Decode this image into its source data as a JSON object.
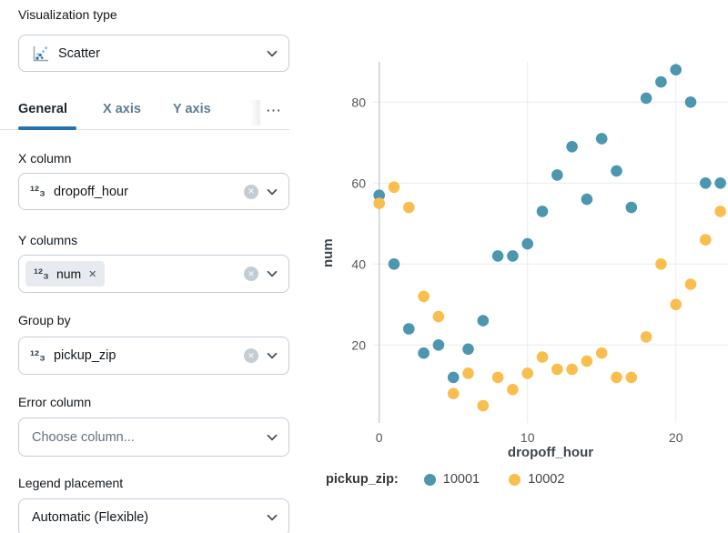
{
  "colors": {
    "accent_blue": "#2272B4",
    "series_blue": "#4D96AF",
    "series_yellow": "#F9BE4D",
    "tab_inactive": "#5E7D92",
    "text_dark": "#11171C"
  },
  "icons": {
    "numeric_type": "¹²₃",
    "clear": "✕",
    "remove": "✕",
    "more_tabs": "⋯"
  },
  "panel": {
    "visualization_type_label": "Visualization type",
    "visualization_type_value": "Scatter",
    "tabs": [
      {
        "label": "General",
        "active": true
      },
      {
        "label": "X axis",
        "active": false
      },
      {
        "label": "Y axis",
        "active": false
      }
    ],
    "x_column": {
      "label": "X column",
      "value": "dropoff_hour"
    },
    "y_columns": {
      "label": "Y columns",
      "chip_value": "num"
    },
    "group_by": {
      "label": "Group by",
      "value": "pickup_zip"
    },
    "error_column": {
      "label": "Error column",
      "placeholder": "Choose column..."
    },
    "legend_placement": {
      "label": "Legend placement",
      "value": "Automatic (Flexible)"
    }
  },
  "chart_data": {
    "type": "scatter",
    "xlabel": "dropoff_hour",
    "ylabel": "num",
    "x_ticks": [
      "0",
      "10",
      "20"
    ],
    "y_ticks": [
      "20",
      "40",
      "60",
      "80"
    ],
    "xlim": [
      -0.7,
      23.6
    ],
    "ylim": [
      0,
      90
    ],
    "grid": true,
    "legend_title": "pickup_zip:",
    "legend_position": "bottom",
    "series": [
      {
        "name": "10001",
        "color": "#4D96AF",
        "points": [
          [
            0,
            57
          ],
          [
            1,
            40
          ],
          [
            2,
            24
          ],
          [
            3,
            18
          ],
          [
            4,
            20
          ],
          [
            5,
            12
          ],
          [
            6,
            19
          ],
          [
            7,
            26
          ],
          [
            8,
            42
          ],
          [
            9,
            42
          ],
          [
            10,
            45
          ],
          [
            11,
            53
          ],
          [
            12,
            62
          ],
          [
            13,
            69
          ],
          [
            14,
            56
          ],
          [
            15,
            71
          ],
          [
            16,
            63
          ],
          [
            17,
            54
          ],
          [
            18,
            81
          ],
          [
            19,
            85
          ],
          [
            20,
            88
          ],
          [
            21,
            80
          ],
          [
            22,
            60
          ],
          [
            23,
            60
          ]
        ]
      },
      {
        "name": "10002",
        "color": "#F9BE4D",
        "points": [
          [
            0,
            55
          ],
          [
            1,
            59
          ],
          [
            2,
            54
          ],
          [
            3,
            32
          ],
          [
            4,
            27
          ],
          [
            5,
            8
          ],
          [
            6,
            13
          ],
          [
            7,
            5
          ],
          [
            8,
            12
          ],
          [
            9,
            9
          ],
          [
            10,
            13
          ],
          [
            11,
            17
          ],
          [
            12,
            14
          ],
          [
            13,
            14
          ],
          [
            14,
            16
          ],
          [
            15,
            18
          ],
          [
            16,
            12
          ],
          [
            17,
            12
          ],
          [
            18,
            22
          ],
          [
            19,
            40
          ],
          [
            20,
            30
          ],
          [
            21,
            35
          ],
          [
            22,
            46
          ],
          [
            23,
            53
          ]
        ]
      }
    ]
  }
}
